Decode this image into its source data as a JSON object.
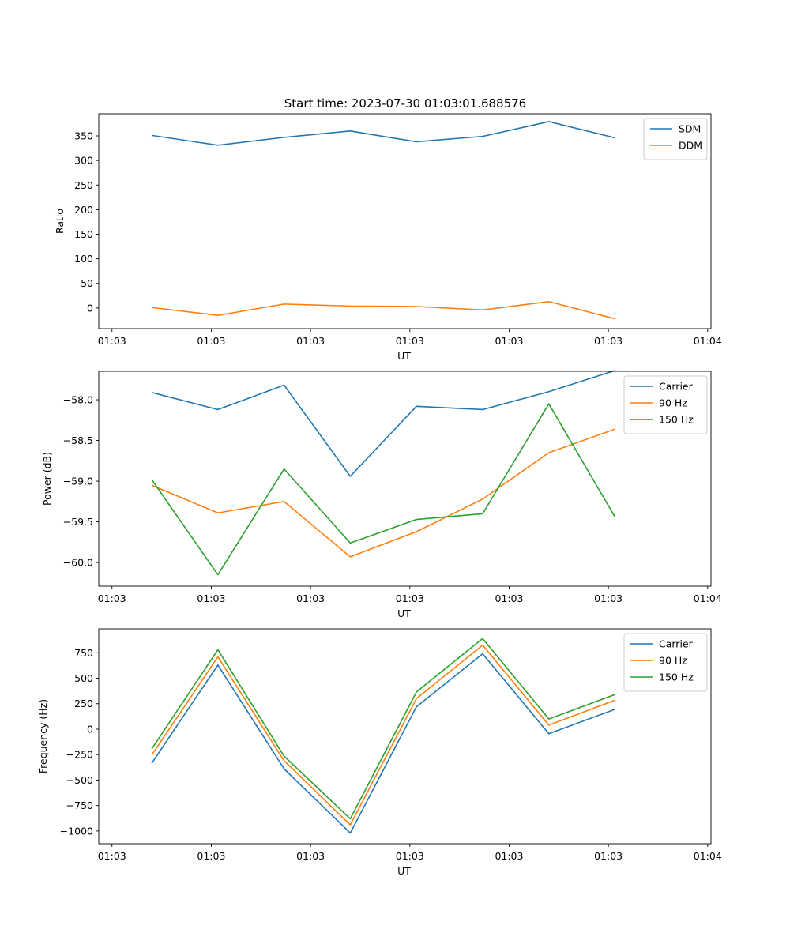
{
  "figure": {
    "title": "Start time: 2023-07-30 01:03:01.688576"
  },
  "colors": {
    "blue": "#1f77b4",
    "orange": "#ff7f0e",
    "green": "#2ca02c"
  },
  "chart_data": [
    {
      "type": "line",
      "ylabel": "Ratio",
      "xlabel": "UT",
      "x": [
        1,
        2,
        3,
        4,
        5,
        6,
        7,
        8
      ],
      "xlim": [
        0.2,
        9.45
      ],
      "x_ticks": [
        0.4,
        1.9,
        3.4,
        4.9,
        6.4,
        7.9,
        9.4
      ],
      "x_tick_labels": [
        "01:03",
        "01:03",
        "01:03",
        "01:03",
        "01:03",
        "01:03",
        "01:04"
      ],
      "ylim": [
        -42,
        395
      ],
      "y_ticks": [
        0,
        50,
        100,
        150,
        200,
        250,
        300,
        350
      ],
      "y_tick_labels": [
        "0",
        "50",
        "100",
        "150",
        "200",
        "250",
        "300",
        "350"
      ],
      "legend": "top-right",
      "series": [
        {
          "name": "SDM",
          "color": "#1f77b4",
          "values": [
            351,
            331,
            347,
            360,
            338,
            349,
            379,
            346
          ]
        },
        {
          "name": "DDM",
          "color": "#ff7f0e",
          "values": [
            1,
            -15,
            8,
            4,
            3,
            -4,
            13,
            -22
          ]
        }
      ]
    },
    {
      "type": "line",
      "ylabel": "Power (dB)",
      "xlabel": "UT",
      "x": [
        1,
        2,
        3,
        4,
        5,
        6,
        7,
        8
      ],
      "xlim": [
        0.2,
        9.45
      ],
      "x_ticks": [
        0.4,
        1.9,
        3.4,
        4.9,
        6.4,
        7.9,
        9.4
      ],
      "x_tick_labels": [
        "01:03",
        "01:03",
        "01:03",
        "01:03",
        "01:03",
        "01:03",
        "01:04"
      ],
      "ylim": [
        -60.29,
        -57.65
      ],
      "y_ticks": [
        -60.0,
        -59.5,
        -59.0,
        -58.5,
        -58.0
      ],
      "y_tick_labels": [
        "−60.0",
        "−59.5",
        "−59.0",
        "−58.5",
        "−58.0"
      ],
      "legend": "top-right",
      "series": [
        {
          "name": "Carrier",
          "color": "#1f77b4",
          "values": [
            -57.91,
            -58.12,
            -57.82,
            -58.94,
            -58.08,
            -58.12,
            -57.9,
            -57.64
          ]
        },
        {
          "name": "90 Hz",
          "color": "#ff7f0e",
          "values": [
            -59.05,
            -59.39,
            -59.25,
            -59.93,
            -59.62,
            -59.22,
            -58.65,
            -58.36
          ]
        },
        {
          "name": "150 Hz",
          "color": "#2ca02c",
          "values": [
            -58.98,
            -60.15,
            -58.85,
            -59.76,
            -59.47,
            -59.4,
            -58.05,
            -59.44
          ]
        }
      ]
    },
    {
      "type": "line",
      "ylabel": "Frequency (Hz)",
      "xlabel": "UT",
      "x": [
        1,
        2,
        3,
        4,
        5,
        6,
        7,
        8
      ],
      "xlim": [
        0.2,
        9.45
      ],
      "x_ticks": [
        0.4,
        1.9,
        3.4,
        4.9,
        6.4,
        7.9,
        9.4
      ],
      "x_tick_labels": [
        "01:03",
        "01:03",
        "01:03",
        "01:03",
        "01:03",
        "01:03",
        "01:04"
      ],
      "ylim": [
        -1125,
        985
      ],
      "y_ticks": [
        -1000,
        -750,
        -500,
        -250,
        0,
        250,
        500,
        750
      ],
      "y_tick_labels": [
        "−1000",
        "−750",
        "−500",
        "−250",
        "0",
        "250",
        "500",
        "750"
      ],
      "legend": "top-right",
      "series": [
        {
          "name": "Carrier",
          "color": "#1f77b4",
          "values": [
            -335,
            630,
            -390,
            -1020,
            220,
            740,
            -45,
            195
          ]
        },
        {
          "name": "90 Hz",
          "color": "#ff7f0e",
          "values": [
            -255,
            710,
            -310,
            -940,
            300,
            825,
            40,
            285
          ]
        },
        {
          "name": "150 Hz",
          "color": "#2ca02c",
          "values": [
            -195,
            780,
            -265,
            -880,
            365,
            890,
            100,
            340
          ]
        }
      ]
    }
  ]
}
